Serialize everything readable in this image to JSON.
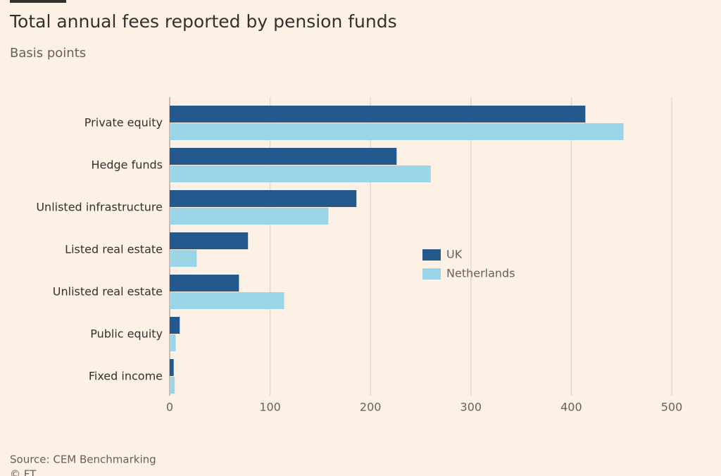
{
  "chart_data": {
    "type": "hbar",
    "title": "Total annual fees reported by pension funds",
    "subtitle": "Basis points",
    "categories": [
      "Private equity",
      "Hedge funds",
      "Unlisted infrastructure",
      "Listed real estate",
      "Unlisted real estate",
      "Public equity",
      "Fixed income"
    ],
    "series": [
      {
        "name": "UK",
        "color": "#23598c",
        "values": [
          414,
          226,
          186,
          78,
          69,
          10,
          4
        ]
      },
      {
        "name": "Netherlands",
        "color": "#9dd5e8",
        "values": [
          452,
          260,
          158,
          27,
          114,
          6,
          5
        ]
      }
    ],
    "xlim": [
      0,
      500
    ],
    "xticks": [
      0,
      100,
      200,
      300,
      400,
      500
    ],
    "grid": true,
    "legend_position": "center",
    "source": "Source: CEM Benchmarking",
    "copyright": "© FT"
  }
}
